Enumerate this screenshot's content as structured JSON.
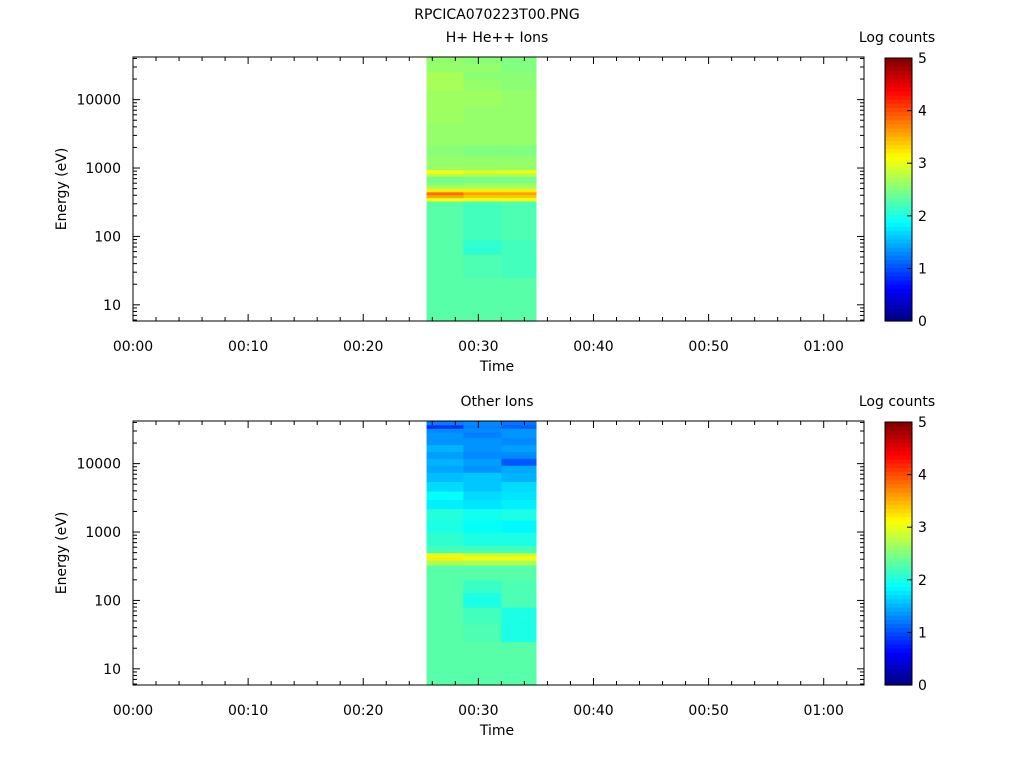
{
  "page_title": "RPCICA070223T00.PNG",
  "chart_data": [
    {
      "type": "heatmap",
      "title": "H+ He++ Ions",
      "xlabel": "Time",
      "ylabel": "Energy (eV)",
      "x_ticks": [
        "00:00",
        "00:10",
        "00:20",
        "00:30",
        "00:40",
        "00:50",
        "01:00"
      ],
      "xlim_minutes": [
        0,
        63.5
      ],
      "y_scale": "log",
      "ylim": [
        5.8,
        42000
      ],
      "y_ticks": [
        {
          "value": 10,
          "label": "10"
        },
        {
          "value": 100,
          "label": "100"
        },
        {
          "value": 1000,
          "label": "1000"
        },
        {
          "value": 10000,
          "label": "10000"
        }
      ],
      "colorbar": {
        "label": "Log counts",
        "range": [
          0,
          5
        ],
        "ticks": [
          "0",
          "1",
          "2",
          "3",
          "4",
          "5"
        ],
        "colormap": "jet"
      },
      "data_time_range_minutes": [
        25.5,
        35
      ],
      "time_columns_minutes": [
        [
          25.5,
          28.7
        ],
        [
          28.7,
          32.0
        ],
        [
          32.0,
          35.0
        ]
      ],
      "energy_bins": [
        {
          "emin": 5.8,
          "emax": 25,
          "values": [
            2.3,
            2.3,
            2.3
          ]
        },
        {
          "emin": 25,
          "emax": 55,
          "values": [
            2.3,
            2.25,
            2.2
          ]
        },
        {
          "emin": 55,
          "emax": 90,
          "values": [
            2.3,
            2.1,
            2.2
          ]
        },
        {
          "emin": 90,
          "emax": 180,
          "values": [
            2.3,
            2.2,
            2.25
          ]
        },
        {
          "emin": 180,
          "emax": 330,
          "values": [
            2.3,
            2.2,
            2.25
          ]
        },
        {
          "emin": 330,
          "emax": 370,
          "values": [
            3.05,
            3.05,
            3.05
          ]
        },
        {
          "emin": 370,
          "emax": 410,
          "values": [
            3.55,
            3.4,
            3.4
          ]
        },
        {
          "emin": 410,
          "emax": 450,
          "values": [
            3.85,
            3.6,
            3.6
          ]
        },
        {
          "emin": 450,
          "emax": 500,
          "values": [
            3.2,
            3.2,
            3.2
          ]
        },
        {
          "emin": 500,
          "emax": 560,
          "values": [
            2.7,
            2.7,
            2.7
          ]
        },
        {
          "emin": 560,
          "emax": 620,
          "values": [
            2.55,
            2.6,
            2.6
          ]
        },
        {
          "emin": 620,
          "emax": 760,
          "values": [
            2.45,
            2.45,
            2.45
          ]
        },
        {
          "emin": 760,
          "emax": 850,
          "values": [
            2.8,
            2.75,
            2.75
          ]
        },
        {
          "emin": 850,
          "emax": 950,
          "values": [
            3.1,
            3.0,
            3.05
          ]
        },
        {
          "emin": 950,
          "emax": 1500,
          "values": [
            2.6,
            2.6,
            2.6
          ]
        },
        {
          "emin": 1500,
          "emax": 2200,
          "values": [
            2.55,
            2.5,
            2.5
          ]
        },
        {
          "emin": 2200,
          "emax": 4500,
          "values": [
            2.6,
            2.6,
            2.6
          ]
        },
        {
          "emin": 4500,
          "emax": 8000,
          "values": [
            2.65,
            2.6,
            2.6
          ]
        },
        {
          "emin": 8000,
          "emax": 14000,
          "values": [
            2.65,
            2.65,
            2.6
          ]
        },
        {
          "emin": 14000,
          "emax": 20000,
          "values": [
            2.7,
            2.6,
            2.55
          ]
        },
        {
          "emin": 20000,
          "emax": 26000,
          "values": [
            2.7,
            2.55,
            2.55
          ]
        },
        {
          "emin": 26000,
          "emax": 33000,
          "values": [
            2.6,
            2.6,
            2.5
          ]
        },
        {
          "emin": 33000,
          "emax": 42000,
          "values": [
            2.6,
            2.55,
            2.5
          ]
        }
      ]
    },
    {
      "type": "heatmap",
      "title": "Other Ions",
      "xlabel": "Time",
      "ylabel": "Energy (eV)",
      "x_ticks": [
        "00:00",
        "00:10",
        "00:20",
        "00:30",
        "00:40",
        "00:50",
        "01:00"
      ],
      "xlim_minutes": [
        0,
        63.5
      ],
      "y_scale": "log",
      "ylim": [
        5.8,
        42000
      ],
      "y_ticks": [
        {
          "value": 10,
          "label": "10"
        },
        {
          "value": 100,
          "label": "100"
        },
        {
          "value": 1000,
          "label": "1000"
        },
        {
          "value": 10000,
          "label": "10000"
        }
      ],
      "colorbar": {
        "label": "Log counts",
        "range": [
          0,
          5
        ],
        "ticks": [
          "0",
          "1",
          "2",
          "3",
          "4",
          "5"
        ],
        "colormap": "jet"
      },
      "data_time_range_minutes": [
        25.5,
        35
      ],
      "time_columns_minutes": [
        [
          25.5,
          28.7
        ],
        [
          28.7,
          32.0
        ],
        [
          32.0,
          35.0
        ]
      ],
      "energy_bins": [
        {
          "emin": 5.8,
          "emax": 25,
          "values": [
            2.3,
            2.3,
            2.3
          ]
        },
        {
          "emin": 25,
          "emax": 45,
          "values": [
            2.3,
            2.25,
            2.0
          ]
        },
        {
          "emin": 45,
          "emax": 80,
          "values": [
            2.3,
            2.2,
            2.0
          ]
        },
        {
          "emin": 80,
          "emax": 130,
          "values": [
            2.3,
            2.0,
            2.25
          ]
        },
        {
          "emin": 130,
          "emax": 200,
          "values": [
            2.3,
            2.15,
            2.25
          ]
        },
        {
          "emin": 200,
          "emax": 330,
          "values": [
            2.3,
            2.3,
            2.3
          ]
        },
        {
          "emin": 330,
          "emax": 390,
          "values": [
            2.7,
            2.7,
            2.7
          ]
        },
        {
          "emin": 390,
          "emax": 440,
          "values": [
            3.2,
            3.1,
            3.1
          ]
        },
        {
          "emin": 440,
          "emax": 500,
          "values": [
            3.0,
            2.9,
            2.9
          ]
        },
        {
          "emin": 500,
          "emax": 640,
          "values": [
            2.2,
            2.2,
            2.2
          ]
        },
        {
          "emin": 640,
          "emax": 1000,
          "values": [
            2.1,
            2.0,
            2.0
          ]
        },
        {
          "emin": 1000,
          "emax": 1500,
          "values": [
            2.0,
            1.9,
            1.85
          ]
        },
        {
          "emin": 1500,
          "emax": 2200,
          "values": [
            2.05,
            1.95,
            2.0
          ]
        },
        {
          "emin": 2200,
          "emax": 3000,
          "values": [
            1.8,
            1.75,
            1.8
          ]
        },
        {
          "emin": 3000,
          "emax": 4000,
          "values": [
            1.9,
            1.7,
            1.75
          ]
        },
        {
          "emin": 4000,
          "emax": 5500,
          "values": [
            1.7,
            1.6,
            1.7
          ]
        },
        {
          "emin": 5500,
          "emax": 7500,
          "values": [
            1.55,
            1.6,
            1.5
          ]
        },
        {
          "emin": 7500,
          "emax": 9500,
          "values": [
            1.45,
            1.35,
            1.45
          ]
        },
        {
          "emin": 9500,
          "emax": 12000,
          "values": [
            1.5,
            1.4,
            1.05
          ]
        },
        {
          "emin": 12000,
          "emax": 15000,
          "values": [
            1.4,
            1.3,
            1.3
          ]
        },
        {
          "emin": 15000,
          "emax": 19000,
          "values": [
            1.5,
            1.35,
            1.4
          ]
        },
        {
          "emin": 19000,
          "emax": 24000,
          "values": [
            1.35,
            1.35,
            1.3
          ]
        },
        {
          "emin": 24000,
          "emax": 29000,
          "values": [
            1.35,
            1.25,
            1.35
          ]
        },
        {
          "emin": 29000,
          "emax": 33000,
          "values": [
            1.3,
            1.3,
            1.35
          ]
        },
        {
          "emin": 33000,
          "emax": 37000,
          "values": [
            0.85,
            1.25,
            1.1
          ]
        },
        {
          "emin": 37000,
          "emax": 42000,
          "values": [
            1.25,
            1.3,
            1.2
          ]
        }
      ]
    }
  ]
}
